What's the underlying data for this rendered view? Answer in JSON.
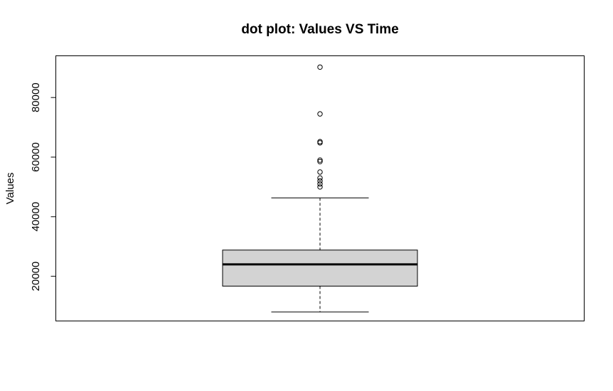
{
  "chart_data": {
    "type": "boxplot",
    "title": "dot plot: Values VS Time",
    "xlabel": "",
    "ylabel": "Values",
    "ylim": [
      5000,
      94000
    ],
    "yticks": [
      20000,
      40000,
      60000,
      80000
    ],
    "ytick_labels": [
      "20000",
      "40000",
      "60000",
      "80000"
    ],
    "grid": false,
    "box": {
      "whisker_low": 8000,
      "q1": 16700,
      "median": 24000,
      "q3": 28800,
      "whisker_high": 46300
    },
    "outliers": [
      50000,
      51000,
      52000,
      53000,
      55000,
      58500,
      59000,
      64800,
      65200,
      74500,
      90200
    ],
    "colors": {
      "box_fill": "#d3d3d3",
      "line": "#000000",
      "background": "#ffffff"
    }
  }
}
